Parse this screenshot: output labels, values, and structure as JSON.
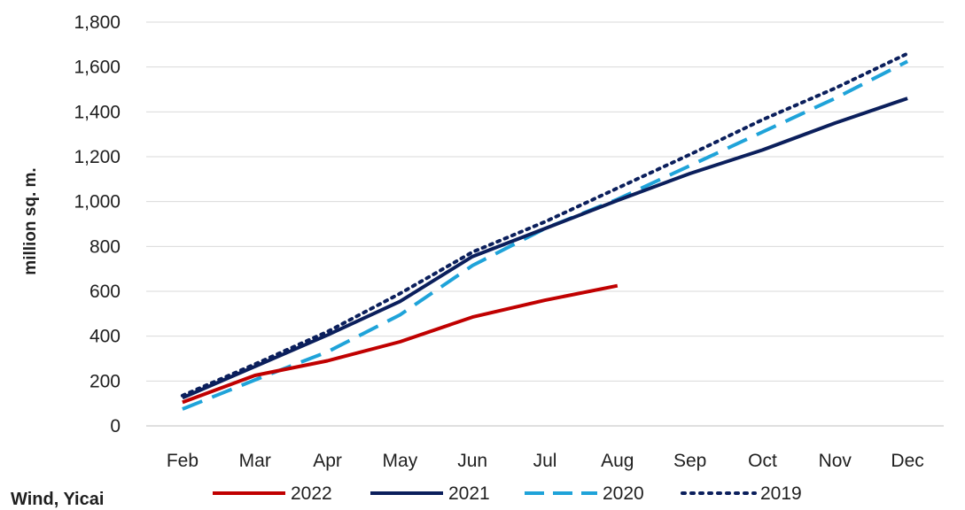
{
  "chart_data": {
    "type": "line",
    "title": "",
    "xlabel": "",
    "ylabel": "million sq. m.",
    "source": "Wind, Yicai",
    "categories": [
      "Feb",
      "Mar",
      "Apr",
      "May",
      "Jun",
      "Jul",
      "Aug",
      "Sep",
      "Oct",
      "Nov",
      "Dec"
    ],
    "ylim": [
      0,
      1800
    ],
    "yticks": [
      "0",
      "200",
      "400",
      "600",
      "800",
      "1,000",
      "1,200",
      "1,400",
      "1,600",
      "1,800"
    ],
    "ytick_values": [
      0,
      200,
      400,
      600,
      800,
      1000,
      1200,
      1400,
      1600,
      1800
    ],
    "grid": "horizontal",
    "legend_position": "bottom",
    "series": [
      {
        "name": "2022",
        "color": "#c00000",
        "style": "solid",
        "values": [
          105,
          225,
          290,
          375,
          485,
          560,
          625,
          null,
          null,
          null,
          null
        ]
      },
      {
        "name": "2021",
        "color": "#0b1f5c",
        "style": "solid",
        "values": [
          125,
          265,
          405,
          555,
          755,
          880,
          1005,
          1125,
          1230,
          1350,
          1460
        ]
      },
      {
        "name": "2020",
        "color": "#1fa3d9",
        "style": "dashed",
        "values": [
          75,
          205,
          330,
          495,
          715,
          880,
          1010,
          1160,
          1310,
          1460,
          1625
        ]
      },
      {
        "name": "2019",
        "color": "#0b1f5c",
        "style": "dotted",
        "values": [
          135,
          275,
          420,
          590,
          775,
          910,
          1060,
          1210,
          1365,
          1505,
          1660
        ]
      }
    ]
  }
}
